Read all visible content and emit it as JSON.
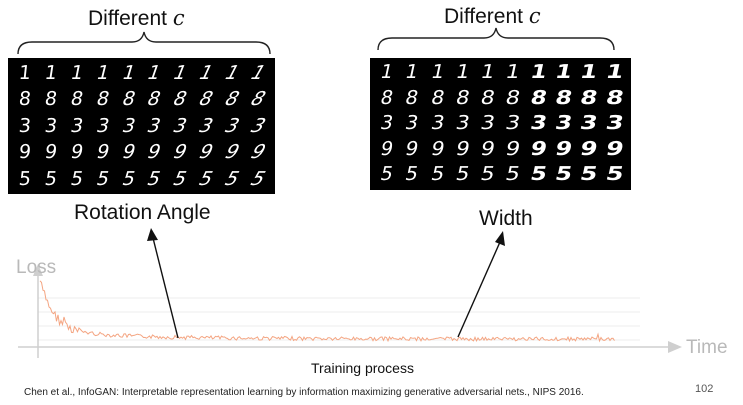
{
  "left_panel": {
    "header_prefix": "Different ",
    "header_var": "c",
    "caption": "Rotation Angle",
    "digit_rows": [
      "1",
      "8",
      "3",
      "9",
      "5"
    ]
  },
  "right_panel": {
    "header_prefix": "Different ",
    "header_var": "c",
    "caption": "Width",
    "digit_rows": [
      "1",
      "8",
      "3",
      "9",
      "5"
    ]
  },
  "plot": {
    "y_label": "Loss",
    "x_axis_label": "Time",
    "x_caption": "Training process",
    "line_color": "#f4a582"
  },
  "footer": {
    "citation": "Chen et al., InfoGAN: Interpretable representation learning by information maximizing generative adversarial nets., NIPS 2016.",
    "page_number": "102"
  }
}
